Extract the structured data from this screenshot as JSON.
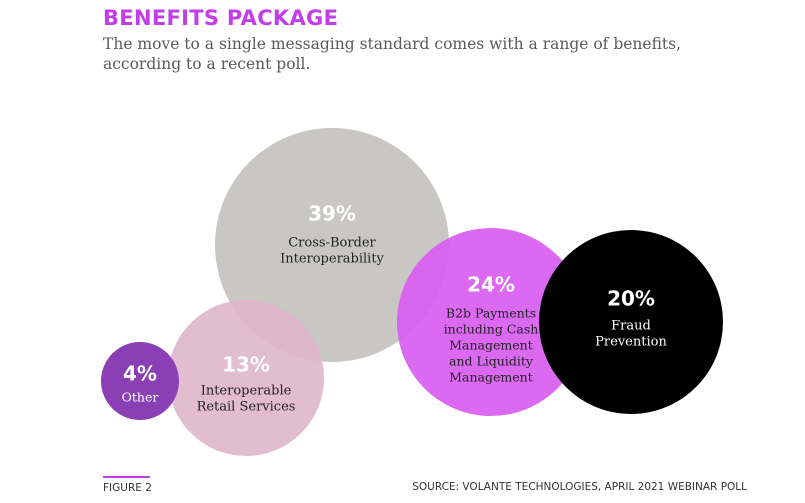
{
  "title": "BENEFITS PACKAGE",
  "subtitle": "The move to a single messaging standard comes with a range of benefits, according to a recent poll.",
  "figure_label": "FIGURE 2",
  "source": "SOURCE: VOLANTE TECHNOLOGIES, APRIL 2021 WEBINAR POLL",
  "colors": {
    "title": "#c23ee8",
    "cross_border": "#c8c7c3",
    "retail": "#e0b6cb",
    "other": "#8a3fb5",
    "b2b": "#d95ef0",
    "fraud": "#000000"
  },
  "chart_data": {
    "type": "bubble",
    "title": "BENEFITS PACKAGE",
    "bubbles": [
      {
        "value": 39,
        "value_label": "39%",
        "label_lines": [
          "Cross-Border",
          "Interoperability"
        ],
        "color": "#c8c7c3",
        "text_color": "#ffffff",
        "label_color": "#222222"
      },
      {
        "value": 13,
        "value_label": "13%",
        "label_lines": [
          "Interoperable",
          "Retail Services"
        ],
        "color": "#e0b6cb",
        "text_color": "#ffffff",
        "label_color": "#222222"
      },
      {
        "value": 4,
        "value_label": "4%",
        "label_lines": [
          "Other"
        ],
        "color": "#8a3fb5",
        "text_color": "#ffffff",
        "label_color": "#ffffff"
      },
      {
        "value": 24,
        "value_label": "24%",
        "label_lines": [
          "B2b Payments",
          "including Cash",
          "Management",
          "and Liquidity",
          "Management"
        ],
        "color": "#d95ef0",
        "text_color": "#ffffff",
        "label_color": "#222222"
      },
      {
        "value": 20,
        "value_label": "20%",
        "label_lines": [
          "Fraud",
          "Prevention"
        ],
        "color": "#000000",
        "text_color": "#ffffff",
        "label_color": "#ffffff"
      }
    ]
  }
}
